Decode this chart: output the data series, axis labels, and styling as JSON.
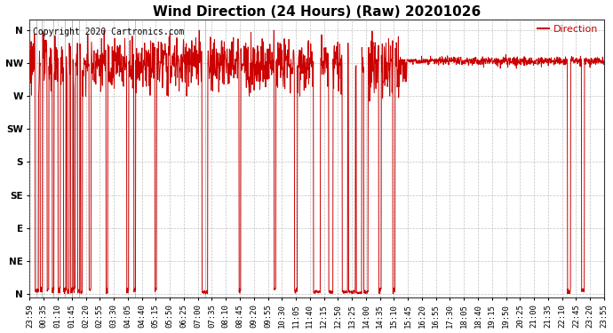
{
  "title": "Wind Direction (24 Hours) (Raw) 20201026",
  "copyright": "Copyright 2020 Cartronics.com",
  "legend_label": "Direction",
  "legend_color": "#cc0000",
  "line_color": "#cc0000",
  "background_color": "#ffffff",
  "grid_color": "#999999",
  "ytick_labels": [
    "N",
    "NW",
    "W",
    "SW",
    "S",
    "SE",
    "E",
    "NE",
    "N"
  ],
  "ytick_values": [
    360,
    315,
    270,
    225,
    180,
    135,
    90,
    45,
    0
  ],
  "ylim": [
    -5,
    375
  ],
  "xtick_labels": [
    "23:59",
    "00:35",
    "01:10",
    "01:45",
    "02:20",
    "02:55",
    "03:30",
    "04:05",
    "04:40",
    "05:15",
    "05:50",
    "06:25",
    "07:00",
    "07:35",
    "08:10",
    "08:45",
    "09:20",
    "09:55",
    "10:30",
    "11:05",
    "11:40",
    "12:15",
    "12:50",
    "13:25",
    "14:00",
    "14:35",
    "15:10",
    "15:45",
    "16:20",
    "16:55",
    "17:30",
    "18:05",
    "18:40",
    "19:15",
    "19:50",
    "20:25",
    "21:00",
    "21:35",
    "22:10",
    "22:45",
    "23:20",
    "23:55"
  ],
  "title_fontsize": 11,
  "copyright_fontsize": 7,
  "tick_fontsize": 6.5,
  "legend_fontsize": 8
}
